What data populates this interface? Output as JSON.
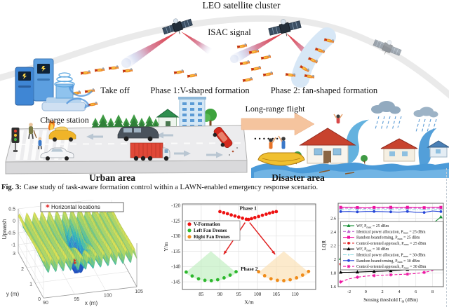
{
  "figure": {
    "caption_label": "Fig. 3:",
    "caption_text": " Case study of task-aware formation control within a LAWN-enabled emergency response scenario."
  },
  "illustration": {
    "labels": {
      "leo_cluster": "LEO satellite cluster",
      "isac_signal": "ISAC signal",
      "take_off": "Take off",
      "phase1": "Phase 1:V-shaped formation",
      "phase2": "Phase 2: fan-shaped formation",
      "charge_station": "Charge station",
      "long_range_flight": "Long-range flight",
      "ellipsis": "......",
      "urban_area": "Urban area",
      "disaster_area": "Disaster area"
    }
  },
  "chart_data": [
    {
      "type": "surface",
      "title": "",
      "legend": [
        {
          "label": "Horizontal locations",
          "marker": "asterisk",
          "color": "#e01818"
        }
      ],
      "xlabel": "x (m)",
      "ylabel": "y (m)",
      "zlabel": "Upwash",
      "x_ticks": [
        90,
        95,
        100,
        105
      ],
      "y_ticks": [
        0,
        1,
        2,
        3
      ],
      "z_ticks": [
        0.5,
        0,
        -0.5,
        -1
      ],
      "x_range": [
        90,
        105
      ],
      "y_range": [
        0,
        3
      ],
      "z_range": [
        -1.33,
        0.5
      ],
      "surface": {
        "ripple_period_m": 1.2,
        "ripple_amplitude": 0.27,
        "dip_center_x": 97.3,
        "dip_center_y": 1.5,
        "dip_depth": -1.33
      },
      "marker_points": [
        [
          96.6,
          1.15
        ],
        [
          97.4,
          1.75
        ]
      ],
      "colormap": [
        "#1d3ec0",
        "#2b7fd0",
        "#2ab8c0",
        "#8ccf70",
        "#f6e84e"
      ]
    },
    {
      "type": "scatter",
      "xlabel": "X/m",
      "ylabel": "Y/m",
      "xlim": [
        80,
        115.5
      ],
      "ylim": [
        -147.5,
        -119.5
      ],
      "x_ticks": [
        85,
        90,
        95,
        100,
        105,
        110
      ],
      "y_ticks": [
        -145,
        -140,
        -135,
        -130,
        -125,
        -120
      ],
      "annotations": [
        {
          "text": "Phase 1",
          "x": 97.5,
          "y": -121.4
        },
        {
          "text": "Phase 2",
          "x": 97.8,
          "y": -141.3
        }
      ],
      "series": [
        {
          "name": "V-Formation",
          "color": "#ee1111",
          "points": [
            [
              90,
              -122
            ],
            [
              91,
              -122.35
            ],
            [
              92,
              -122.7
            ],
            [
              93,
              -123.1
            ],
            [
              94,
              -123.45
            ],
            [
              95,
              -123.8
            ],
            [
              96,
              -124.15
            ],
            [
              97,
              -124.5
            ],
            [
              97.6,
              -124.6
            ],
            [
              98.4,
              -124.3
            ],
            [
              99.3,
              -123.95
            ],
            [
              100.3,
              -123.6
            ],
            [
              101.3,
              -123.2
            ],
            [
              102.3,
              -122.85
            ],
            [
              103.2,
              -122.5
            ],
            [
              104.1,
              -122.2
            ],
            [
              105,
              -122
            ]
          ]
        },
        {
          "name": "Left Fan Drones",
          "color": "#2db82d",
          "points": [
            [
              81,
              -141.8
            ],
            [
              82.6,
              -143.1
            ],
            [
              84.3,
              -144
            ],
            [
              86,
              -144.5
            ],
            [
              87.7,
              -144.6
            ],
            [
              89.4,
              -144.3
            ],
            [
              91.1,
              -143.7
            ],
            [
              92.7,
              -142.8
            ],
            [
              94.3,
              -141.7
            ]
          ]
        },
        {
          "name": "Right Fan Drones",
          "color": "#f08c1a",
          "points": [
            [
              100.3,
              -141.7
            ],
            [
              101.9,
              -143
            ],
            [
              103.6,
              -144
            ],
            [
              105.3,
              -144.5
            ],
            [
              107,
              -144.6
            ],
            [
              108.7,
              -144.3
            ],
            [
              110.4,
              -143.7
            ],
            [
              112,
              -142.8
            ],
            [
              113.6,
              -141.6
            ]
          ]
        }
      ],
      "fans": [
        {
          "cx": 87.6,
          "cy": -135,
          "r": 9.8,
          "a1": 226,
          "a2": 314,
          "fill": "#bfeebf"
        },
        {
          "cx": 107,
          "cy": -135,
          "r": 9.8,
          "a1": 226,
          "a2": 314,
          "fill": "#fbdfb0"
        }
      ],
      "arrows": [
        {
          "x1": 96.7,
          "y1": -125.6,
          "x2": 91,
          "y2": -136
        },
        {
          "x1": 97.9,
          "y1": -125.6,
          "x2": 104.7,
          "y2": -136
        }
      ]
    },
    {
      "type": "line",
      "xlabel": "Sensing threshold Γ{th} (dBm)",
      "ylabel": "LQR",
      "xlim": [
        -3.3,
        9.3
      ],
      "ylim": [
        1.6,
        2.82
      ],
      "x_ticks": [
        -2,
        0,
        2,
        4,
        6,
        8
      ],
      "y_ticks": [
        1.6,
        1.8,
        2,
        2.2,
        2.4,
        2.6
      ],
      "x": [
        -3,
        -2,
        -1,
        0,
        1,
        2,
        3,
        4,
        5,
        6,
        7,
        8,
        9
      ],
      "marker_every": 2,
      "series": [
        {
          "label": "WF, P{max} = 25 dBm",
          "color": "#0f8c2f",
          "dash": "solid",
          "marker": "tri",
          "values": [
            2.01,
            2.045,
            2.08,
            2.115,
            2.15,
            2.185,
            2.22,
            2.26,
            2.31,
            2.37,
            2.44,
            2.52,
            2.62
          ]
        },
        {
          "label": "Identical power allocation, P{max} = 25 dBm",
          "color": "#c060d0",
          "dash": "dash",
          "marker": "tri",
          "values": [
            2.748,
            2.748,
            2.748,
            2.746,
            2.748,
            2.748,
            2.748,
            2.748,
            2.748,
            2.748,
            2.746,
            2.748,
            2.748
          ]
        },
        {
          "label": "Random beamforming, P{max} = 25 dBm",
          "color": "#ee10a0",
          "dash": "solid",
          "marker": "sq",
          "values": [
            2.762,
            2.762,
            2.758,
            2.752,
            2.76,
            2.762,
            2.762,
            2.758,
            2.762,
            2.76,
            2.756,
            2.764,
            2.762
          ]
        },
        {
          "label": "Control-oriented approach, P{max} = 25 dBm",
          "color": "#e02020",
          "dash": "dash",
          "marker": "circ",
          "values": [
            1.93,
            1.97,
            2,
            2.03,
            2.05,
            2.06,
            2.08,
            2.1,
            2.13,
            2.17,
            2.22,
            2.31,
            2.43
          ]
        },
        {
          "label": "WF, P{max} = 30 dBm",
          "color": "#000000",
          "dash": "solid",
          "marker": "tri",
          "values": [
            1.81,
            1.81,
            1.813,
            1.818,
            1.822,
            1.827,
            1.833,
            1.84,
            1.85,
            1.866,
            1.893,
            1.95,
            2.05
          ]
        },
        {
          "label": "Identical power allocation, P{max} = 30 dBm",
          "color": "#86d8e0",
          "dash": "dashdot",
          "marker": "dot",
          "values": [
            2.728,
            2.728,
            2.728,
            2.728,
            2.728,
            2.728,
            2.728,
            2.728,
            2.728,
            2.728,
            2.728,
            2.728,
            2.728
          ]
        },
        {
          "label": "Random beamforming, P{max} = 30 dBm",
          "color": "#2545d8",
          "dash": "solid",
          "marker": "circ",
          "values": [
            2.698,
            2.7,
            2.694,
            2.7,
            2.7,
            2.698,
            2.694,
            2.69,
            2.7,
            2.688,
            2.686,
            2.706,
            2.698
          ]
        },
        {
          "label": "Control-oriented approach, P{max} = 30 dBm",
          "color": "#ee10a0",
          "dash": "dash",
          "marker": "star",
          "values": [
            1.67,
            1.715,
            1.738,
            1.755,
            1.762,
            1.768,
            1.773,
            1.778,
            1.784,
            1.793,
            1.808,
            1.835,
            1.93
          ]
        }
      ]
    }
  ]
}
